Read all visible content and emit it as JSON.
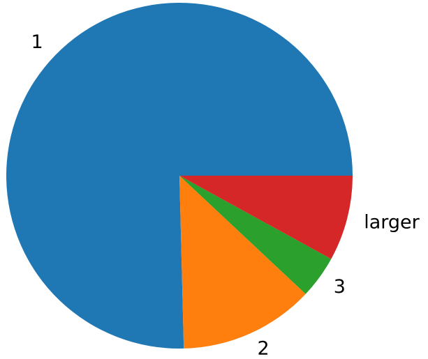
{
  "chart_data": {
    "type": "pie",
    "start_angle_deg": 0,
    "direction": "counterclockwise",
    "series": [
      {
        "labels": [
          "1",
          "2",
          "3",
          "larger"
        ],
        "values": [
          75.4,
          12.6,
          4.0,
          8.0
        ],
        "colors": [
          "#1f77b4",
          "#ff7f0e",
          "#2ca02c",
          "#d62728"
        ]
      }
    ]
  }
}
